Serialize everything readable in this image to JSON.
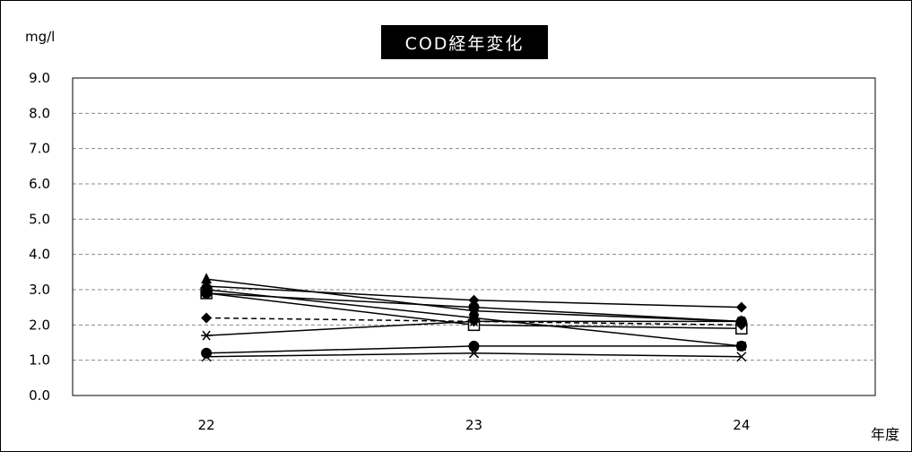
{
  "chart_data": {
    "type": "line",
    "title": "COD経年変化",
    "ylabel": "mg/l",
    "xlabel": "年度",
    "categories": [
      "22",
      "23",
      "24"
    ],
    "ylim": [
      0,
      9
    ],
    "yticks": [
      "0.0",
      "1.0",
      "2.0",
      "3.0",
      "4.0",
      "5.0",
      "6.0",
      "7.0",
      "8.0",
      "9.0"
    ],
    "grid": true,
    "series": [
      {
        "marker": "triangle",
        "dash": false,
        "values": [
          3.3,
          2.4,
          2.1
        ]
      },
      {
        "marker": "diamond",
        "dash": false,
        "values": [
          3.1,
          2.7,
          2.5
        ]
      },
      {
        "marker": "square-open",
        "dash": false,
        "values": [
          2.9,
          2.0,
          1.9
        ]
      },
      {
        "marker": "square",
        "dash": false,
        "values": [
          3.0,
          2.2,
          1.4
        ]
      },
      {
        "marker": "circle",
        "dash": false,
        "values": [
          2.9,
          2.5,
          2.1
        ]
      },
      {
        "marker": "diamond",
        "dash": true,
        "values": [
          2.2,
          2.1,
          2.0
        ]
      },
      {
        "marker": "asterisk",
        "dash": false,
        "values": [
          1.7,
          2.1,
          2.1
        ]
      },
      {
        "marker": "circle",
        "dash": false,
        "values": [
          1.2,
          1.4,
          1.4
        ]
      },
      {
        "marker": "x",
        "dash": false,
        "values": [
          1.1,
          1.2,
          1.1
        ]
      }
    ]
  }
}
